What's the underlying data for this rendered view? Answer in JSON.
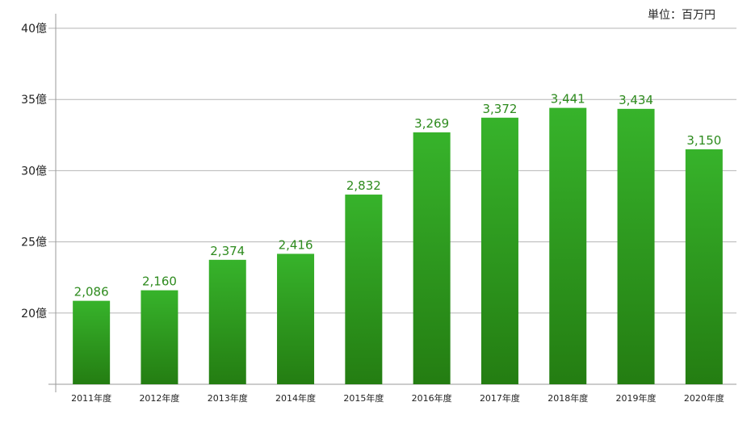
{
  "chart_data": {
    "type": "bar",
    "unit_label": "単位：百万円",
    "categories": [
      "2011年度",
      "2012年度",
      "2013年度",
      "2014年度",
      "2015年度",
      "2016年度",
      "2017年度",
      "2018年度",
      "2019年度",
      "2020年度"
    ],
    "values": [
      2086,
      2160,
      2374,
      2416,
      2832,
      3269,
      3372,
      3441,
      3434,
      3150
    ],
    "data_labels": [
      "2,086",
      "2,160",
      "2,374",
      "2,416",
      "2,832",
      "3,269",
      "3,372",
      "3,441",
      "3,434",
      "3,150"
    ],
    "y_ticks": [
      {
        "value": 2000,
        "label": "20億"
      },
      {
        "value": 2500,
        "label": "25億"
      },
      {
        "value": 3000,
        "label": "30億"
      },
      {
        "value": 3500,
        "label": "35億"
      },
      {
        "value": 4000,
        "label": "40億"
      }
    ],
    "ylim": [
      1500,
      4000
    ],
    "grid": true,
    "colors": {
      "bar_top": "#37b32b",
      "bar_bottom": "#247d12",
      "label": "#2e8b1e",
      "grid": "#b5b5b5",
      "axis": "#9a9a9a"
    }
  }
}
